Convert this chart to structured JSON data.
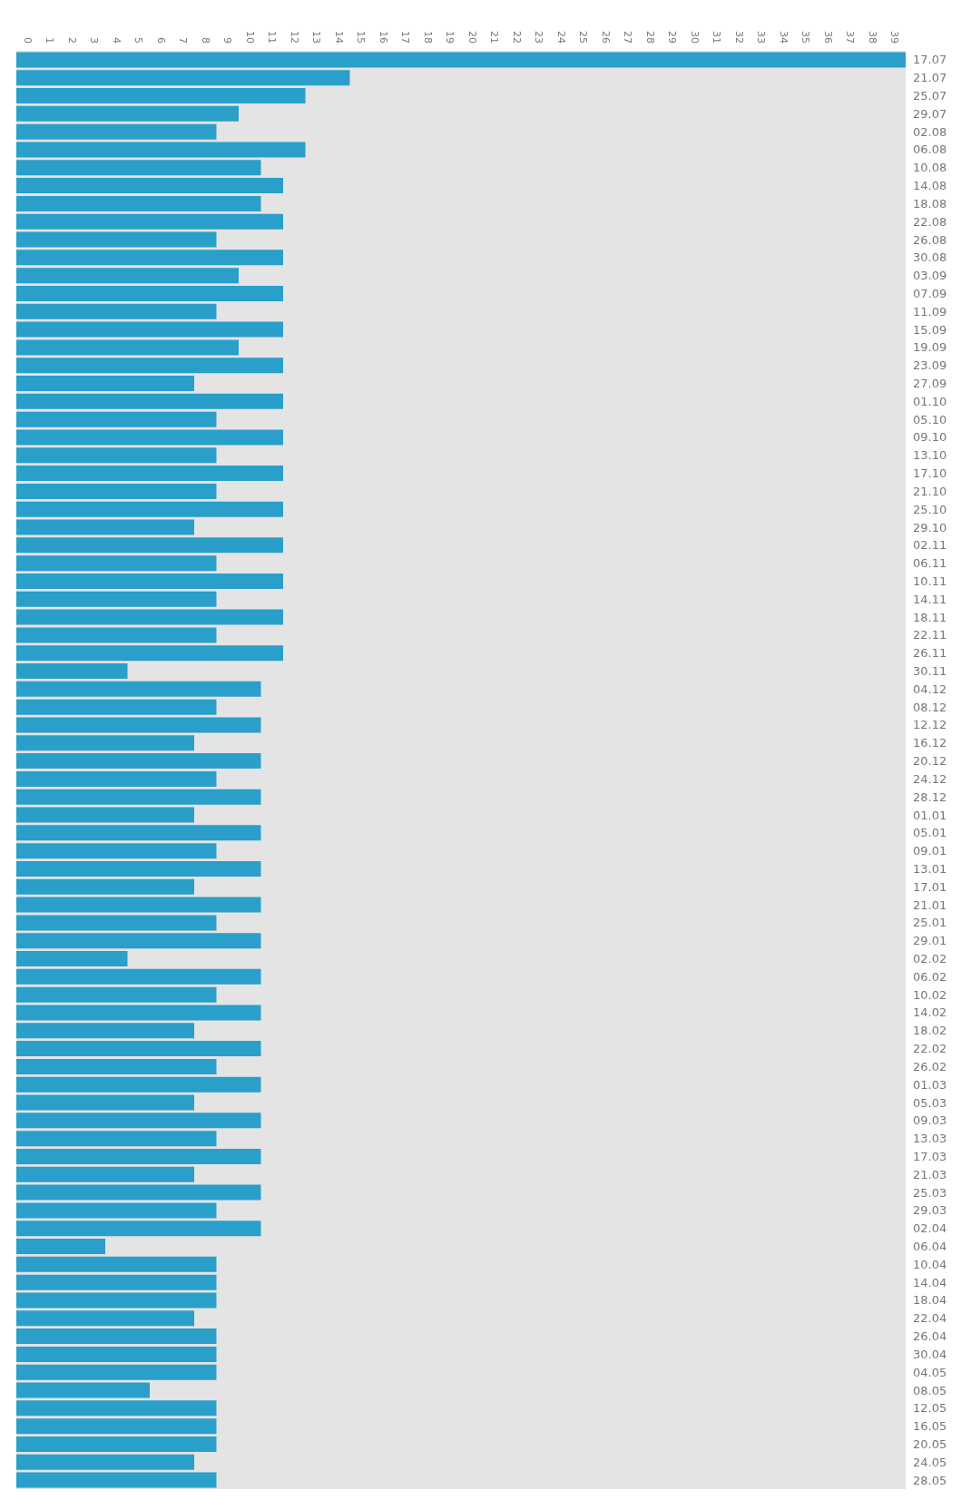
{
  "chart_data": {
    "type": "bar",
    "orientation": "horizontal",
    "categories": [
      "17.07",
      "21.07",
      "25.07",
      "29.07",
      "02.08",
      "06.08",
      "10.08",
      "14.08",
      "18.08",
      "22.08",
      "26.08",
      "30.08",
      "03.09",
      "07.09",
      "11.09",
      "15.09",
      "19.09",
      "23.09",
      "27.09",
      "01.10",
      "05.10",
      "09.10",
      "13.10",
      "17.10",
      "21.10",
      "25.10",
      "29.10",
      "02.11",
      "06.11",
      "10.11",
      "14.11",
      "18.11",
      "22.11",
      "26.11",
      "30.11",
      "04.12",
      "08.12",
      "12.12",
      "16.12",
      "20.12",
      "24.12",
      "28.12",
      "01.01",
      "05.01",
      "09.01",
      "13.01",
      "17.01",
      "21.01",
      "25.01",
      "29.01",
      "02.02",
      "06.02",
      "10.02",
      "14.02",
      "18.02",
      "22.02",
      "26.02",
      "01.03",
      "05.03",
      "09.03",
      "13.03",
      "17.03",
      "21.03",
      "25.03",
      "29.03",
      "02.04",
      "06.04",
      "10.04",
      "14.04",
      "18.04",
      "22.04",
      "26.04",
      "30.04",
      "04.05",
      "08.05",
      "12.05",
      "16.05",
      "20.05",
      "24.05",
      "28.05"
    ],
    "values": [
      40,
      15,
      13,
      10,
      9,
      13,
      11,
      12,
      11,
      12,
      9,
      12,
      10,
      12,
      9,
      12,
      10,
      12,
      8,
      12,
      9,
      12,
      9,
      12,
      9,
      12,
      8,
      12,
      9,
      12,
      9,
      12,
      9,
      12,
      5,
      11,
      9,
      11,
      8,
      11,
      9,
      11,
      8,
      11,
      9,
      11,
      8,
      11,
      9,
      11,
      5,
      11,
      9,
      11,
      8,
      11,
      9,
      11,
      8,
      11,
      9,
      11,
      8,
      11,
      9,
      11,
      4,
      9,
      9,
      9,
      8,
      9,
      9,
      9,
      6,
      9,
      9,
      9,
      8,
      9
    ],
    "base": [
      -0.5,
      -0.5,
      -0.5,
      -0.5,
      -0.5,
      -0.5,
      -0.5,
      -0.5,
      -0.5,
      -0.5,
      -0.5,
      -0.5,
      -0.5,
      -0.5,
      -0.5,
      -0.5,
      -0.5,
      -0.5,
      -0.5,
      -0.5,
      -0.5,
      -0.5,
      -0.5,
      -0.5,
      -0.5,
      -0.5,
      -0.5,
      -0.5,
      -0.5,
      -0.5,
      -0.5,
      -0.5,
      -0.5,
      -0.5,
      -0.5,
      -0.5,
      -0.5,
      -0.5,
      -0.5,
      -0.5,
      -0.5,
      -0.5,
      -0.5,
      -0.5,
      -0.5,
      -0.5,
      -0.5,
      -0.5,
      -0.5,
      -0.5,
      -0.5,
      -0.5,
      -0.5,
      -0.5,
      -0.5,
      -0.5,
      -0.5,
      -0.5,
      -0.5,
      -0.5,
      -0.5,
      -0.5,
      -0.5,
      -0.5,
      -0.5,
      -0.5,
      -0.5,
      -0.5,
      -0.5,
      -0.5,
      -0.5,
      -0.5,
      -0.5,
      -0.5,
      -0.5,
      -0.5,
      -0.5,
      -0.5,
      -0.5,
      -0.5
    ],
    "color": "#2a9fc9",
    "xlim": [
      -0.5,
      39.5
    ],
    "xticks": [
      0,
      1,
      2,
      3,
      4,
      5,
      6,
      7,
      8,
      9,
      10,
      11,
      12,
      13,
      14,
      15,
      16,
      17,
      18,
      19,
      20,
      21,
      22,
      23,
      24,
      25,
      26,
      27,
      28,
      29,
      30,
      31,
      32,
      33,
      34,
      35,
      36,
      37,
      38,
      39
    ]
  }
}
